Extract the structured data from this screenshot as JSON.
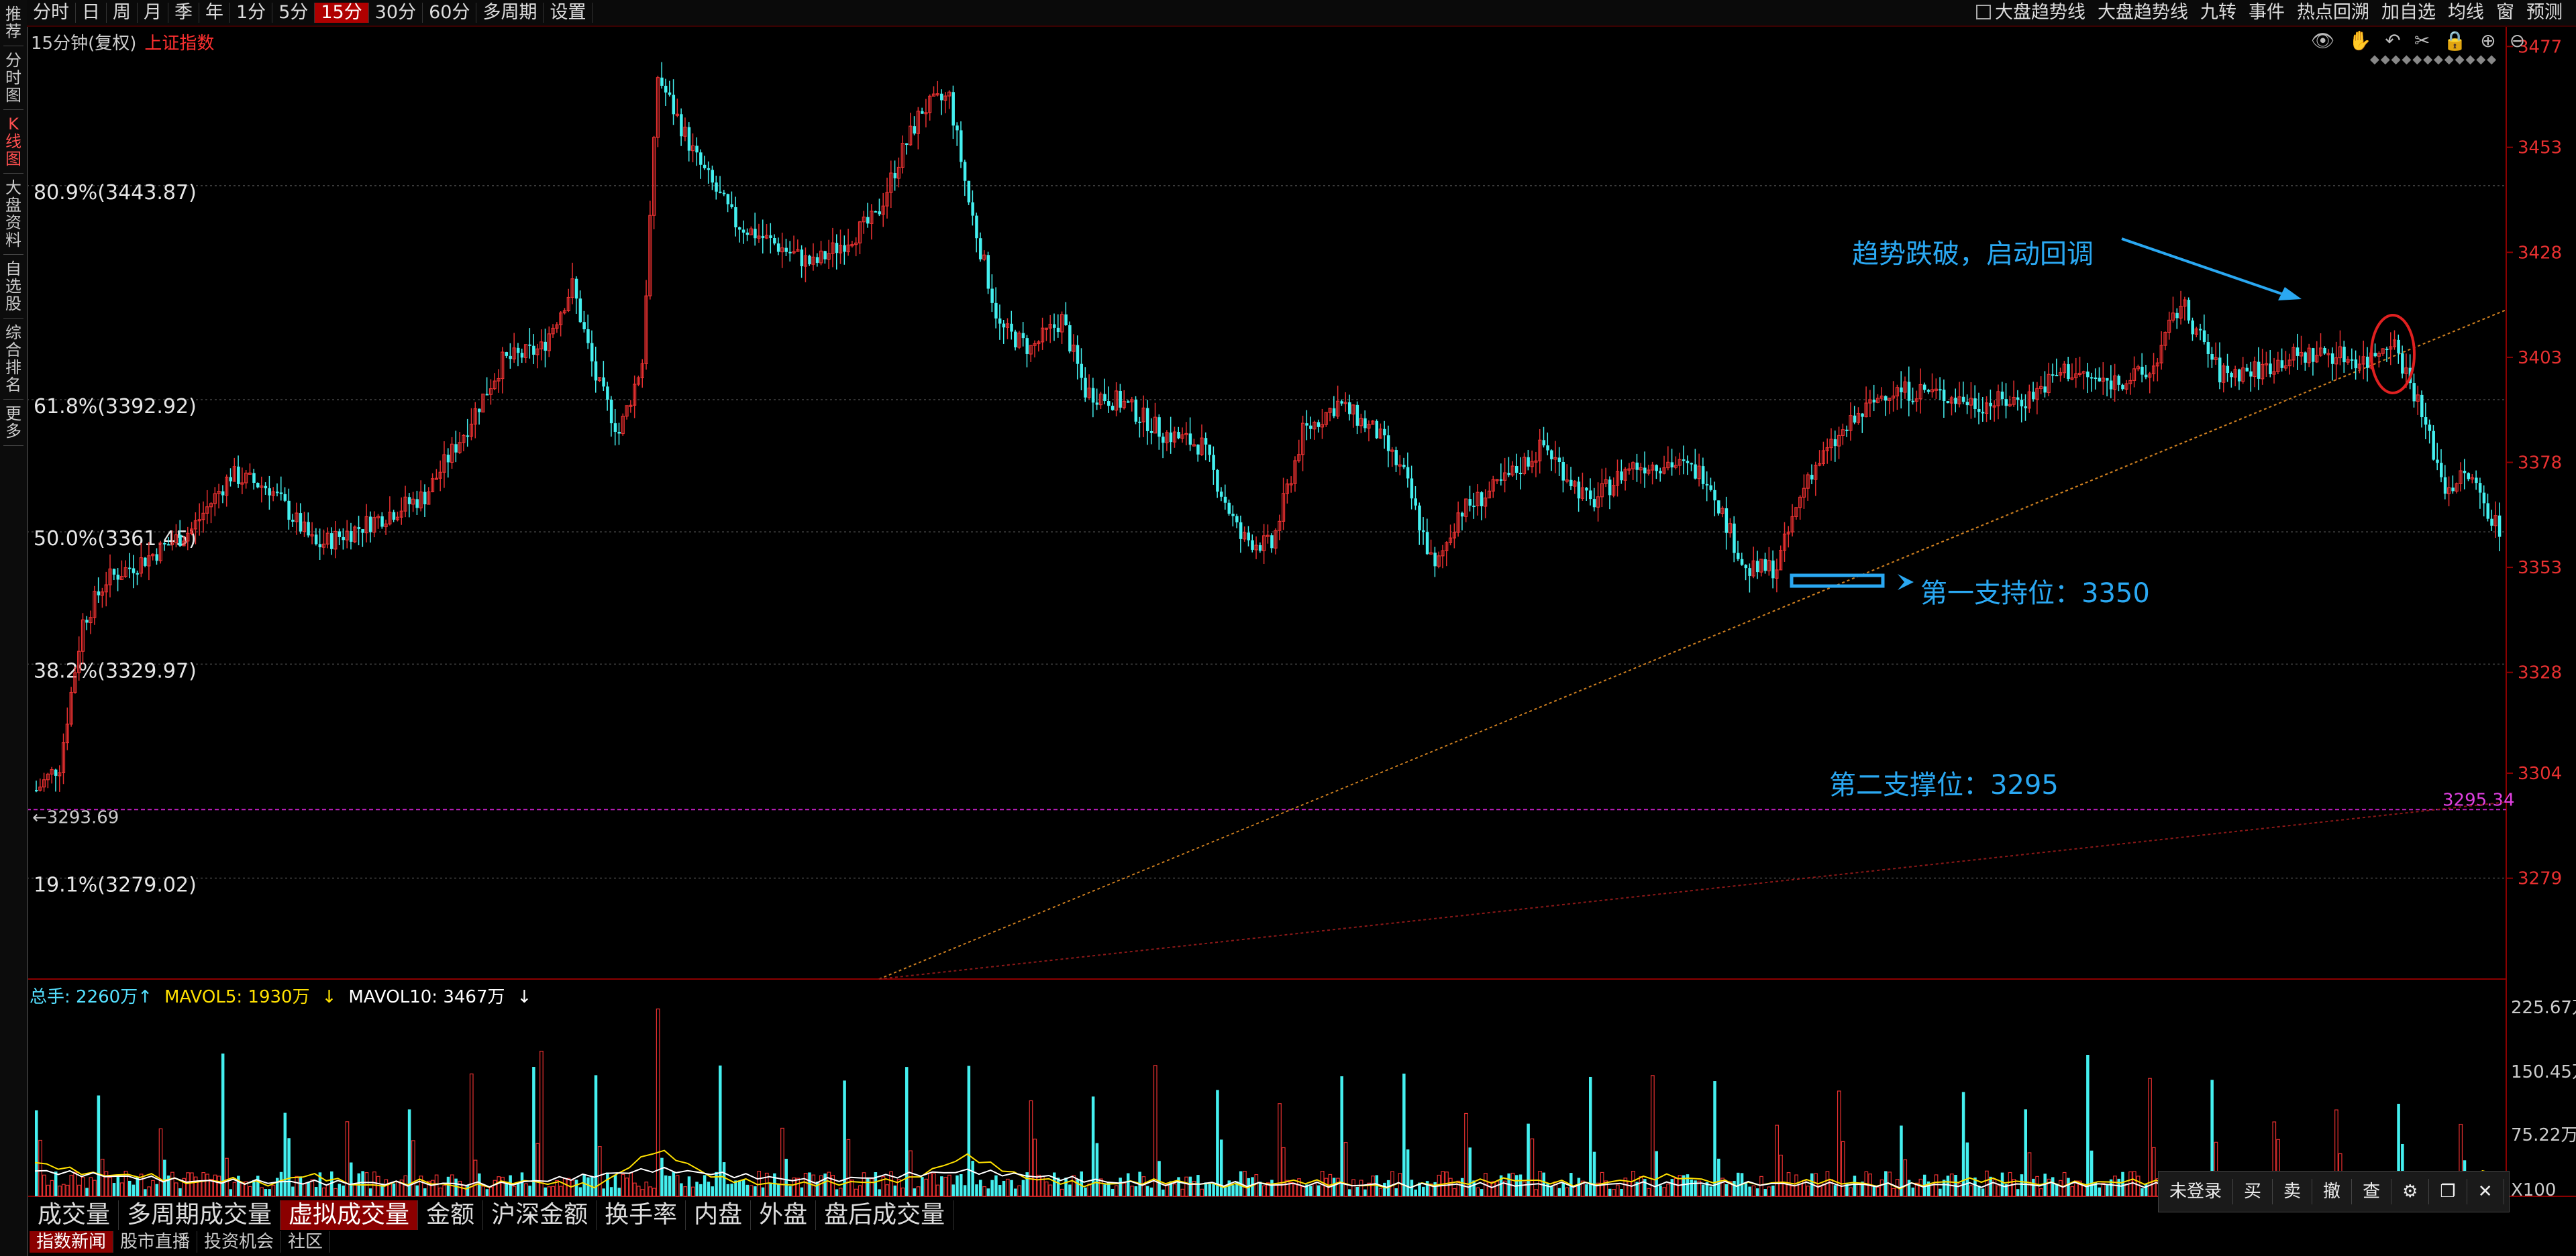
{
  "toolbar": {
    "periods": [
      "分时",
      "日",
      "周",
      "月",
      "季",
      "年",
      "1分",
      "5分",
      "15分",
      "30分",
      "60分",
      "多周期",
      "设置"
    ],
    "active_period": "15分",
    "right_items": [
      "大盘趋势线",
      "大盘趋势线",
      "九转",
      "事件",
      "热点回溯",
      "加自选",
      "均线",
      "窗",
      "预测"
    ]
  },
  "sidebar": [
    "推荐",
    "分时图",
    "K线图",
    "大盘资料",
    "自选股",
    "综合排名",
    "更多"
  ],
  "subtitle": {
    "period": "15分钟(复权)",
    "index": "上证指数"
  },
  "fib_levels": [
    {
      "label": "80.9%(3443.87)",
      "value": 3443.87
    },
    {
      "label": "61.8%(3392.92)",
      "value": 3392.92
    },
    {
      "label": "50.0%(3361.45)",
      "value": 3361.45
    },
    {
      "label": "38.2%(3329.97)",
      "value": 3329.97
    },
    {
      "label": "19.1%(3279.02)",
      "value": 3279.02
    }
  ],
  "price_axis": [
    "3477",
    "3453",
    "3428",
    "3403",
    "3378",
    "3353",
    "3328",
    "3304",
    "3279"
  ],
  "low_marker": "3293.69",
  "support_line_label": "3295.34",
  "annotations": {
    "trend_break": "趋势跌破，启动回调",
    "support1": "第一支持位：3350",
    "support2": "第二支撑位：3295"
  },
  "volume": {
    "total": "总手: 2260万",
    "mavol5": "MAVOL5: 1930万",
    "mavol10": "MAVOL10: 3467万",
    "axis": [
      "225.67万",
      "150.45万",
      "75.22万",
      "X100"
    ]
  },
  "indicator_tabs": [
    "成交量",
    "多周期成交量",
    "虚拟成交量",
    "金额",
    "沪深金额",
    "换手率",
    "内盘",
    "外盘",
    "盘后成交量"
  ],
  "active_tab": "虚拟成交量",
  "bottom_tabs": [
    "指数新闻",
    "股市直播",
    "投资机会",
    "社区"
  ],
  "trade_bar": [
    "未登录",
    "买",
    "卖",
    "撤",
    "查",
    "⚙",
    "❐",
    "✕"
  ],
  "colors": {
    "up": "#e83030",
    "down": "#44f0f0",
    "accent": "#2aa8f2",
    "purple": "#c020c0"
  },
  "chart_data": {
    "type": "candlestick",
    "title": "上证指数 15分钟(复权)",
    "ylim": [
      3255,
      3482
    ],
    "vol_max": 225.67,
    "anchors": [
      [
        0,
        3300
      ],
      [
        6,
        3306
      ],
      [
        12,
        3340
      ],
      [
        18,
        3350
      ],
      [
        28,
        3355
      ],
      [
        40,
        3362
      ],
      [
        50,
        3375
      ],
      [
        60,
        3372
      ],
      [
        72,
        3358
      ],
      [
        82,
        3362
      ],
      [
        100,
        3370
      ],
      [
        110,
        3385
      ],
      [
        120,
        3402
      ],
      [
        130,
        3405
      ],
      [
        138,
        3420
      ],
      [
        144,
        3398
      ],
      [
        150,
        3385
      ],
      [
        156,
        3402
      ],
      [
        160,
        3470
      ],
      [
        164,
        3462
      ],
      [
        170,
        3450
      ],
      [
        180,
        3435
      ],
      [
        190,
        3430
      ],
      [
        200,
        3425
      ],
      [
        210,
        3432
      ],
      [
        216,
        3436
      ],
      [
        222,
        3450
      ],
      [
        228,
        3462
      ],
      [
        235,
        3465
      ],
      [
        240,
        3440
      ],
      [
        248,
        3410
      ],
      [
        256,
        3405
      ],
      [
        264,
        3412
      ],
      [
        270,
        3395
      ],
      [
        280,
        3392
      ],
      [
        290,
        3385
      ],
      [
        300,
        3382
      ],
      [
        310,
        3360
      ],
      [
        318,
        3358
      ],
      [
        326,
        3385
      ],
      [
        335,
        3392
      ],
      [
        345,
        3385
      ],
      [
        352,
        3375
      ],
      [
        360,
        3352
      ],
      [
        366,
        3366
      ],
      [
        376,
        3372
      ],
      [
        388,
        3382
      ],
      [
        400,
        3368
      ],
      [
        410,
        3377
      ],
      [
        420,
        3378
      ],
      [
        430,
        3375
      ],
      [
        440,
        3352
      ],
      [
        448,
        3353
      ],
      [
        456,
        3375
      ],
      [
        466,
        3386
      ],
      [
        476,
        3395
      ],
      [
        486,
        3395
      ],
      [
        500,
        3392
      ],
      [
        512,
        3393
      ],
      [
        522,
        3400
      ],
      [
        532,
        3397
      ],
      [
        544,
        3399
      ],
      [
        552,
        3416
      ],
      [
        562,
        3399
      ],
      [
        572,
        3400
      ],
      [
        580,
        3403
      ],
      [
        590,
        3404
      ],
      [
        600,
        3402
      ],
      [
        606,
        3408
      ],
      [
        612,
        3395
      ],
      [
        620,
        3372
      ],
      [
        626,
        3375
      ],
      [
        634,
        3362
      ]
    ],
    "ma5_anchors": [
      [
        0,
        40
      ],
      [
        15,
        26
      ],
      [
        30,
        24
      ],
      [
        40,
        16
      ],
      [
        50,
        20
      ],
      [
        60,
        14
      ],
      [
        70,
        26
      ],
      [
        85,
        12
      ],
      [
        100,
        18
      ],
      [
        110,
        10
      ],
      [
        125,
        18
      ],
      [
        145,
        12
      ],
      [
        160,
        56
      ],
      [
        175,
        22
      ],
      [
        190,
        14
      ],
      [
        210,
        16
      ],
      [
        225,
        20
      ],
      [
        240,
        48
      ],
      [
        255,
        22
      ],
      [
        270,
        14
      ],
      [
        290,
        18
      ],
      [
        310,
        12
      ],
      [
        325,
        18
      ],
      [
        345,
        12
      ],
      [
        360,
        14
      ],
      [
        380,
        20
      ],
      [
        400,
        14
      ],
      [
        420,
        24
      ],
      [
        440,
        14
      ],
      [
        460,
        18
      ],
      [
        480,
        12
      ],
      [
        500,
        20
      ],
      [
        520,
        14
      ],
      [
        540,
        18
      ],
      [
        560,
        12
      ],
      [
        580,
        14
      ],
      [
        600,
        16
      ],
      [
        620,
        20
      ],
      [
        634,
        30
      ]
    ],
    "ma10_anchors": [
      [
        0,
        30
      ],
      [
        40,
        18
      ],
      [
        80,
        16
      ],
      [
        120,
        14
      ],
      [
        160,
        32
      ],
      [
        200,
        18
      ],
      [
        240,
        30
      ],
      [
        280,
        16
      ],
      [
        320,
        14
      ],
      [
        360,
        13
      ],
      [
        400,
        14
      ],
      [
        440,
        15
      ],
      [
        480,
        13
      ],
      [
        520,
        14
      ],
      [
        560,
        13
      ],
      [
        600,
        13
      ],
      [
        634,
        18
      ]
    ]
  }
}
